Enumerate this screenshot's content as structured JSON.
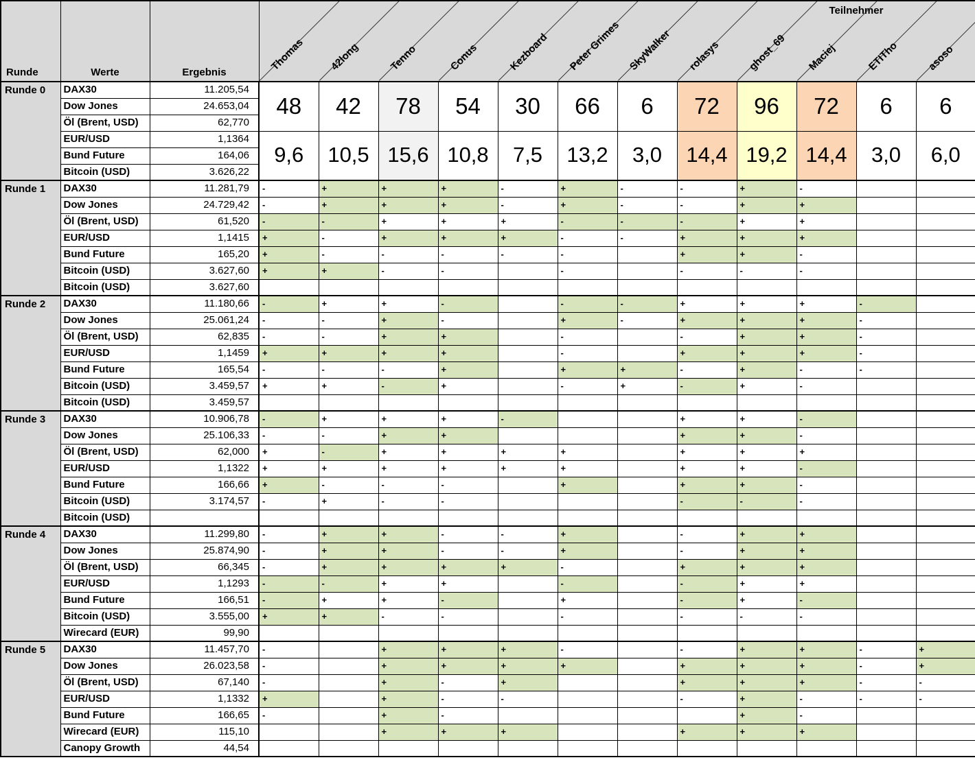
{
  "header": {
    "teilnehmer_label": "Teilnehmer",
    "runde_label": "Runde",
    "werte_label": "Werte",
    "ergebnis_label": "Ergebnis",
    "participants": [
      "Thomas",
      "42long",
      "Tenno",
      "Conus",
      "Kezboard",
      "Peter Grimes",
      "SkyWalker",
      "rolasys",
      "ghost_69",
      "Maciej",
      "ETITho",
      "asoso"
    ]
  },
  "colors": {
    "header_bg": "#d9d9d9",
    "green": "#d8e4bc",
    "orange": "#fbd5b4",
    "yellow": "#ffffcc",
    "tenno_gray": "#f2f2f2",
    "border": "#000000"
  },
  "runde0": {
    "label": "Runde 0",
    "rows": [
      {
        "wert": "DAX30",
        "ergebnis": "11.205,54"
      },
      {
        "wert": "Dow Jones",
        "ergebnis": "24.653,04"
      },
      {
        "wert": "Öl (Brent, USD)",
        "ergebnis": "62,770"
      },
      {
        "wert": "EUR/USD",
        "ergebnis": "1,1364"
      },
      {
        "wert": "Bund Future",
        "ergebnis": "164,06"
      },
      {
        "wert": "Bitcoin (USD)",
        "ergebnis": "3.626,22"
      }
    ],
    "points": [
      "48",
      "42",
      "78",
      "54",
      "30",
      "66",
      "6",
      "72",
      "96",
      "72",
      "6",
      "6"
    ],
    "averages": [
      "9,6",
      "10,5",
      "15,6",
      "10,8",
      "7,5",
      "13,2",
      "3,0",
      "14,4",
      "19,2",
      "14,4",
      "3,0",
      "6,0"
    ],
    "column_highlights": {
      "2": "tenno_gray",
      "7": "orange",
      "8": "yellow",
      "9": "orange"
    }
  },
  "rounds": [
    {
      "label": "Runde 1",
      "rows": [
        {
          "wert": "DAX30",
          "ergebnis": "11.281,79",
          "marks": [
            "-",
            "+",
            "+",
            "+",
            "-",
            "+",
            "-",
            "-",
            "+",
            "-",
            "",
            ""
          ],
          "ok": [
            0,
            1,
            1,
            1,
            0,
            1,
            0,
            0,
            1,
            0,
            0,
            0
          ]
        },
        {
          "wert": "Dow Jones",
          "ergebnis": "24.729,42",
          "marks": [
            "-",
            "+",
            "+",
            "+",
            "-",
            "+",
            "-",
            "-",
            "+",
            "+",
            "",
            ""
          ],
          "ok": [
            0,
            1,
            1,
            1,
            0,
            1,
            0,
            0,
            1,
            1,
            0,
            0
          ]
        },
        {
          "wert": "Öl (Brent, USD)",
          "ergebnis": "61,520",
          "marks": [
            "-",
            "-",
            "+",
            "+",
            "+",
            "-",
            "-",
            "-",
            "+",
            "+",
            "",
            ""
          ],
          "ok": [
            1,
            1,
            0,
            0,
            0,
            1,
            1,
            1,
            0,
            0,
            0,
            0
          ]
        },
        {
          "wert": "EUR/USD",
          "ergebnis": "1,1415",
          "marks": [
            "+",
            "-",
            "+",
            "+",
            "+",
            "-",
            "-",
            "+",
            "+",
            "+",
            "",
            ""
          ],
          "ok": [
            1,
            0,
            1,
            1,
            1,
            0,
            0,
            1,
            1,
            1,
            0,
            0
          ]
        },
        {
          "wert": "Bund Future",
          "ergebnis": "165,20",
          "marks": [
            "+",
            "-",
            "-",
            "-",
            "-",
            "-",
            "",
            "+",
            "+",
            "-",
            "",
            ""
          ],
          "ok": [
            1,
            0,
            0,
            0,
            0,
            0,
            0,
            1,
            1,
            0,
            0,
            0
          ]
        },
        {
          "wert": "Bitcoin (USD)",
          "ergebnis": "3.627,60",
          "marks": [
            "+",
            "+",
            "-",
            "-",
            "",
            "-",
            "",
            "-",
            "-",
            "-",
            "",
            ""
          ],
          "ok": [
            1,
            1,
            0,
            0,
            0,
            0,
            0,
            0,
            0,
            0,
            0,
            0
          ]
        },
        {
          "wert": "Bitcoin (USD)",
          "ergebnis": "3.627,60",
          "marks": [],
          "ok": []
        }
      ]
    },
    {
      "label": "Runde 2",
      "rows": [
        {
          "wert": "DAX30",
          "ergebnis": "11.180,66",
          "marks": [
            "-",
            "+",
            "+",
            "-",
            "",
            "-",
            "-",
            "+",
            "+",
            "+",
            "-",
            ""
          ],
          "ok": [
            1,
            0,
            0,
            1,
            0,
            1,
            1,
            0,
            0,
            0,
            1,
            0
          ]
        },
        {
          "wert": "Dow Jones",
          "ergebnis": "25.061,24",
          "marks": [
            "-",
            "-",
            "+",
            "-",
            "",
            "+",
            "-",
            "+",
            "+",
            "+",
            "-",
            ""
          ],
          "ok": [
            0,
            0,
            1,
            0,
            0,
            1,
            0,
            1,
            1,
            1,
            0,
            0
          ]
        },
        {
          "wert": "Öl (Brent, USD)",
          "ergebnis": "62,835",
          "marks": [
            "-",
            "-",
            "+",
            "+",
            "",
            "-",
            "",
            "-",
            "+",
            "+",
            "-",
            ""
          ],
          "ok": [
            0,
            0,
            1,
            1,
            0,
            0,
            0,
            0,
            1,
            1,
            0,
            0
          ]
        },
        {
          "wert": "EUR/USD",
          "ergebnis": "1,1459",
          "marks": [
            "+",
            "+",
            "+",
            "+",
            "",
            "-",
            "",
            "+",
            "+",
            "+",
            "-",
            ""
          ],
          "ok": [
            1,
            1,
            1,
            1,
            0,
            0,
            0,
            1,
            1,
            1,
            0,
            0
          ]
        },
        {
          "wert": "Bund Future",
          "ergebnis": "165,54",
          "marks": [
            "-",
            "-",
            "-",
            "+",
            "",
            "+",
            "+",
            "-",
            "+",
            "-",
            "-",
            ""
          ],
          "ok": [
            0,
            0,
            0,
            1,
            0,
            1,
            1,
            0,
            1,
            0,
            0,
            0
          ]
        },
        {
          "wert": "Bitcoin (USD)",
          "ergebnis": "3.459,57",
          "marks": [
            "+",
            "+",
            "-",
            "+",
            "",
            "-",
            "+",
            "-",
            "+",
            "-",
            "",
            ""
          ],
          "ok": [
            0,
            0,
            1,
            0,
            0,
            0,
            0,
            1,
            0,
            0,
            0,
            0
          ]
        },
        {
          "wert": "Bitcoin (USD)",
          "ergebnis": "3.459,57",
          "marks": [],
          "ok": []
        }
      ]
    },
    {
      "label": "Runde 3",
      "rows": [
        {
          "wert": "DAX30",
          "ergebnis": "10.906,78",
          "marks": [
            "-",
            "+",
            "+",
            "+",
            "-",
            "",
            "",
            "+",
            "+",
            "-",
            "",
            ""
          ],
          "ok": [
            1,
            0,
            0,
            0,
            1,
            0,
            0,
            0,
            0,
            1,
            0,
            0
          ]
        },
        {
          "wert": "Dow Jones",
          "ergebnis": "25.106,33",
          "marks": [
            "-",
            "-",
            "+",
            "+",
            "",
            "",
            "",
            "+",
            "+",
            "-",
            "",
            ""
          ],
          "ok": [
            0,
            0,
            1,
            1,
            0,
            0,
            0,
            1,
            1,
            0,
            0,
            0
          ]
        },
        {
          "wert": "Öl (Brent, USD)",
          "ergebnis": "62,000",
          "marks": [
            "+",
            "-",
            "+",
            "+",
            "+",
            "+",
            "",
            "+",
            "+",
            "+",
            "",
            ""
          ],
          "ok": [
            0,
            1,
            0,
            0,
            0,
            0,
            0,
            0,
            0,
            0,
            0,
            0
          ]
        },
        {
          "wert": "EUR/USD",
          "ergebnis": "1,1322",
          "marks": [
            "+",
            "+",
            "+",
            "+",
            "+",
            "+",
            "",
            "+",
            "+",
            "-",
            "",
            ""
          ],
          "ok": [
            0,
            0,
            0,
            0,
            0,
            0,
            0,
            0,
            0,
            1,
            0,
            0
          ]
        },
        {
          "wert": "Bund Future",
          "ergebnis": "166,66",
          "marks": [
            "+",
            "-",
            "-",
            "-",
            "",
            "+",
            "",
            "+",
            "+",
            "-",
            "",
            ""
          ],
          "ok": [
            1,
            0,
            0,
            0,
            0,
            1,
            0,
            1,
            1,
            0,
            0,
            0
          ]
        },
        {
          "wert": "Bitcoin (USD)",
          "ergebnis": "3.174,57",
          "marks": [
            "-",
            "+",
            "-",
            "-",
            "",
            "",
            "",
            "-",
            "-",
            "-",
            "",
            ""
          ],
          "ok": [
            0,
            0,
            0,
            0,
            0,
            0,
            0,
            1,
            1,
            0,
            0,
            0
          ]
        },
        {
          "wert": "Bitcoin (USD)",
          "ergebnis": "",
          "marks": [],
          "ok": []
        }
      ]
    },
    {
      "label": "Runde 4",
      "rows": [
        {
          "wert": "DAX30",
          "ergebnis": "11.299,80",
          "marks": [
            "-",
            "+",
            "+",
            "-",
            "-",
            "+",
            "",
            "-",
            "+",
            "+",
            "",
            ""
          ],
          "ok": [
            0,
            1,
            1,
            0,
            0,
            1,
            0,
            0,
            1,
            1,
            0,
            0
          ]
        },
        {
          "wert": "Dow Jones",
          "ergebnis": "25.874,90",
          "marks": [
            "-",
            "+",
            "+",
            "-",
            "-",
            "+",
            "",
            "-",
            "+",
            "+",
            "",
            ""
          ],
          "ok": [
            0,
            1,
            1,
            0,
            0,
            1,
            0,
            0,
            1,
            1,
            0,
            0
          ]
        },
        {
          "wert": "Öl (Brent, USD)",
          "ergebnis": "66,345",
          "marks": [
            "-",
            "+",
            "+",
            "+",
            "+",
            "-",
            "",
            "+",
            "+",
            "+",
            "",
            ""
          ],
          "ok": [
            0,
            1,
            1,
            1,
            1,
            0,
            0,
            1,
            1,
            1,
            0,
            0
          ]
        },
        {
          "wert": "EUR/USD",
          "ergebnis": "1,1293",
          "marks": [
            "-",
            "-",
            "+",
            "+",
            "",
            "-",
            "",
            "-",
            "+",
            "+",
            "",
            ""
          ],
          "ok": [
            1,
            1,
            0,
            0,
            0,
            1,
            0,
            1,
            0,
            0,
            0,
            0
          ]
        },
        {
          "wert": "Bund Future",
          "ergebnis": "166,51",
          "marks": [
            "-",
            "+",
            "+",
            "-",
            "",
            "+",
            "",
            "-",
            "+",
            "-",
            "",
            ""
          ],
          "ok": [
            1,
            0,
            0,
            1,
            0,
            0,
            0,
            1,
            0,
            1,
            0,
            0
          ]
        },
        {
          "wert": "Bitcoin (USD)",
          "ergebnis": "3.555,00",
          "marks": [
            "+",
            "+",
            "-",
            "-",
            "",
            "-",
            "",
            "-",
            "-",
            "-",
            "",
            ""
          ],
          "ok": [
            1,
            1,
            0,
            0,
            0,
            0,
            0,
            0,
            0,
            0,
            0,
            0
          ]
        },
        {
          "wert": "Wirecard (EUR)",
          "ergebnis": "99,90",
          "marks": [],
          "ok": []
        }
      ]
    },
    {
      "label": "Runde 5",
      "rows": [
        {
          "wert": "DAX30",
          "ergebnis": "11.457,70",
          "marks": [
            "-",
            "",
            "+",
            "+",
            "+",
            "-",
            "",
            "-",
            "+",
            "+",
            "-",
            "+"
          ],
          "ok": [
            0,
            0,
            1,
            1,
            1,
            0,
            0,
            0,
            1,
            1,
            0,
            1
          ]
        },
        {
          "wert": "Dow Jones",
          "ergebnis": "26.023,58",
          "marks": [
            "-",
            "",
            "+",
            "+",
            "+",
            "+",
            "",
            "+",
            "+",
            "+",
            "-",
            "+"
          ],
          "ok": [
            0,
            0,
            1,
            1,
            1,
            1,
            0,
            1,
            1,
            1,
            0,
            1
          ]
        },
        {
          "wert": "Öl (Brent, USD)",
          "ergebnis": "67,140",
          "marks": [
            "-",
            "",
            "+",
            "-",
            "+",
            "",
            "",
            "+",
            "+",
            "+",
            "-",
            "-"
          ],
          "ok": [
            0,
            0,
            1,
            0,
            1,
            0,
            0,
            1,
            1,
            1,
            0,
            0
          ]
        },
        {
          "wert": "EUR/USD",
          "ergebnis": "1,1332",
          "marks": [
            "+",
            "",
            "+",
            "-",
            "-",
            "",
            "",
            "-",
            "+",
            "-",
            "-",
            "-"
          ],
          "ok": [
            1,
            0,
            1,
            0,
            0,
            0,
            0,
            0,
            1,
            0,
            0,
            0
          ]
        },
        {
          "wert": "Bund Future",
          "ergebnis": "166,65",
          "marks": [
            "-",
            "",
            "+",
            "-",
            "",
            "",
            "",
            "",
            "+",
            "-",
            "",
            ""
          ],
          "ok": [
            0,
            0,
            1,
            0,
            0,
            0,
            0,
            0,
            1,
            0,
            0,
            0
          ]
        },
        {
          "wert": "Wirecard (EUR)",
          "ergebnis": "115,10",
          "marks": [
            "",
            "",
            "+",
            "+",
            "+",
            "",
            "",
            "+",
            "+",
            "+",
            "",
            ""
          ],
          "ok": [
            0,
            0,
            1,
            1,
            1,
            0,
            0,
            1,
            1,
            1,
            0,
            0
          ]
        },
        {
          "wert": "Canopy Growth",
          "ergebnis": "44,54",
          "marks": [],
          "ok": []
        }
      ]
    }
  ]
}
